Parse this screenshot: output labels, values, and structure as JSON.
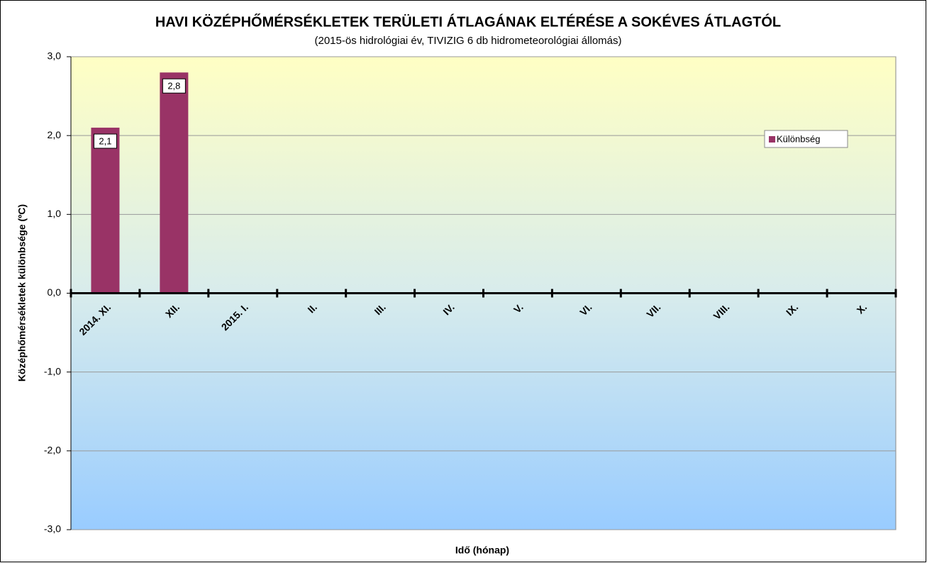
{
  "chart_data": {
    "type": "bar",
    "title": "HAVI KÖZÉPHŐMÉRSÉKLETEK TERÜLETI ÁTLAGÁNAK ELTÉRÉSE A SOKÉVES ÁTLAGTÓL",
    "subtitle": "(2015-ös hidrológiai év, TIVIZIG 6 db hidrometeorológiai állomás)",
    "x_label": "Idő (hónap)",
    "y_label": "Középhőmérsékletek különbsége (ºC)",
    "categories": [
      "2014. XI.",
      "XII.",
      "2015. I.",
      "II.",
      "III.",
      "IV.",
      "V.",
      "VI.",
      "VII.",
      "VIII.",
      "IX.",
      "X."
    ],
    "series": [
      {
        "name": "Különbség",
        "color": "#993366",
        "values": [
          2.1,
          2.8,
          null,
          null,
          null,
          null,
          null,
          null,
          null,
          null,
          null,
          null
        ],
        "value_labels": [
          "2,1",
          "2,8",
          null,
          null,
          null,
          null,
          null,
          null,
          null,
          null,
          null,
          null
        ]
      }
    ],
    "ylim": [
      -3,
      3
    ],
    "yticks": [
      {
        "value": -3,
        "label": "-3,0"
      },
      {
        "value": -2,
        "label": "-2,0"
      },
      {
        "value": -1,
        "label": "-1,0"
      },
      {
        "value": 0,
        "label": "0,0"
      },
      {
        "value": 1,
        "label": "1,0"
      },
      {
        "value": 2,
        "label": "2,0"
      },
      {
        "value": 3,
        "label": "3,0"
      }
    ],
    "grid": true,
    "legend": "right"
  }
}
